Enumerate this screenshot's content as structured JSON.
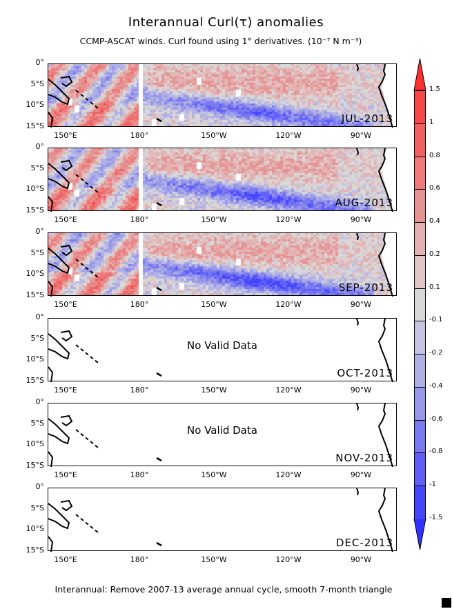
{
  "title": "Interannual Curl(τ) anomalies",
  "subtitle": "CCMP-ASCAT winds. Curl found using 1° derivatives. (10⁻⁷ N m⁻³)",
  "footer": "Interannual: Remove 2007-13 average annual cycle, smooth 7-month triangle",
  "lat_labels": [
    "0°",
    "5°S",
    "10°S",
    "15°S"
  ],
  "lon_labels": [
    "150°E",
    "180°",
    "150°W",
    "120°W",
    "90°W"
  ],
  "panels": [
    {
      "month": "JUL-2013",
      "has_data": true,
      "message": ""
    },
    {
      "month": "AUG-2013",
      "has_data": true,
      "message": ""
    },
    {
      "month": "SEP-2013",
      "has_data": true,
      "message": ""
    },
    {
      "month": "OCT-2013",
      "has_data": false,
      "message": "No Valid Data"
    },
    {
      "month": "NOV-2013",
      "has_data": false,
      "message": "No Valid Data"
    },
    {
      "month": "DEC-2013",
      "has_data": false,
      "message": ""
    }
  ],
  "colorbar": {
    "labels": [
      "1.5",
      "1",
      "0.8",
      "0.6",
      "0.4",
      "0.2",
      "0.1",
      "-0.1",
      "-0.2",
      "-0.4",
      "-0.6",
      "-0.8",
      "-1",
      "-1.5"
    ],
    "colors": [
      "#f84848",
      "#f06262",
      "#ee7a7a",
      "#e69393",
      "#e4b0b0",
      "#e0c6c6",
      "#d8d8d8",
      "#c4c4e0",
      "#b0b0e6",
      "#9898ea",
      "#7a7af0",
      "#6060f8",
      "#4646ff"
    ],
    "top_color": "#ff3030",
    "bottom_color": "#3030ff"
  }
}
